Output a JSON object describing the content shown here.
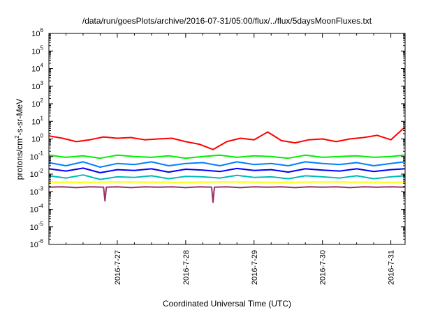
{
  "chart_data": {
    "type": "line",
    "title": "/data/run/goesPlots/archive/2016-07-31/05:00/flux/../flux/5daysMoonFluxes.txt",
    "xlabel": "Coordinated Universal Time (UTC)",
    "ylabel": {
      "base": "protons/cm",
      "sup": "2",
      "rest": "-s-sr-MeV"
    },
    "yscale": "log",
    "ylim": [
      1e-06,
      1000000.0
    ],
    "xlim": [
      "2016-07-26 00:00",
      "2016-07-31 05:00"
    ],
    "x_ticks": [
      "2016-7-27",
      "2016-7-28",
      "2016-7-29",
      "2016-7-30",
      "2016-7-31"
    ],
    "y_ticks": [
      {
        "base": "10",
        "exp": "-6"
      },
      {
        "base": "10",
        "exp": "-5"
      },
      {
        "base": "10",
        "exp": "-4"
      },
      {
        "base": "10",
        "exp": "-3"
      },
      {
        "base": "10",
        "exp": "-2"
      },
      {
        "base": "10",
        "exp": "-1"
      },
      {
        "base": "10",
        "exp": "0"
      },
      {
        "base": "10",
        "exp": "1"
      },
      {
        "base": "10",
        "exp": "2"
      },
      {
        "base": "10",
        "exp": "3"
      },
      {
        "base": "10",
        "exp": "4"
      },
      {
        "base": "10",
        "exp": "5"
      },
      {
        "base": "10",
        "exp": "6"
      }
    ],
    "grid": false,
    "legend": "none",
    "series": [
      {
        "color": "#ff0000",
        "x": [
          0,
          0.2,
          0.4,
          0.6,
          0.8,
          1.0,
          1.2,
          1.4,
          1.6,
          1.8,
          2.0,
          2.2,
          2.4,
          2.6,
          2.8,
          3.0,
          3.2,
          3.4,
          3.6,
          3.8,
          4.0,
          4.2,
          4.4,
          4.6,
          4.8,
          5.0,
          5.2
        ],
        "y": [
          1.5,
          1.1,
          0.7,
          0.9,
          1.3,
          1.1,
          1.2,
          0.9,
          1.0,
          1.1,
          0.7,
          0.5,
          0.25,
          0.7,
          1.1,
          0.9,
          2.5,
          0.8,
          0.6,
          0.9,
          1.0,
          0.7,
          1.0,
          1.2,
          1.6,
          0.9,
          4.5
        ]
      },
      {
        "color": "#00ee00",
        "x": [
          0,
          0.25,
          0.5,
          0.75,
          1.0,
          1.25,
          1.5,
          1.75,
          2.0,
          2.25,
          2.5,
          2.75,
          3.0,
          3.25,
          3.5,
          3.75,
          4.0,
          4.25,
          4.5,
          4.75,
          5.0,
          5.2
        ],
        "y": [
          0.12,
          0.09,
          0.11,
          0.08,
          0.12,
          0.1,
          0.09,
          0.11,
          0.08,
          0.1,
          0.12,
          0.09,
          0.11,
          0.1,
          0.08,
          0.12,
          0.09,
          0.1,
          0.11,
          0.09,
          0.1,
          0.12
        ]
      },
      {
        "color": "#0080ff",
        "x": [
          0,
          0.25,
          0.5,
          0.75,
          1.0,
          1.25,
          1.5,
          1.75,
          2.0,
          2.25,
          2.5,
          2.75,
          3.0,
          3.25,
          3.5,
          3.75,
          4.0,
          4.25,
          4.5,
          4.75,
          5.0,
          5.2
        ],
        "y": [
          0.045,
          0.03,
          0.05,
          0.025,
          0.04,
          0.035,
          0.05,
          0.03,
          0.04,
          0.045,
          0.03,
          0.05,
          0.035,
          0.04,
          0.03,
          0.05,
          0.04,
          0.035,
          0.045,
          0.03,
          0.04,
          0.05
        ]
      },
      {
        "color": "#0000ff",
        "x": [
          0,
          0.25,
          0.5,
          0.75,
          1.0,
          1.25,
          1.5,
          1.75,
          2.0,
          2.25,
          2.5,
          2.75,
          3.0,
          3.25,
          3.5,
          3.75,
          4.0,
          4.25,
          4.5,
          4.75,
          5.0,
          5.2
        ],
        "y": [
          0.02,
          0.015,
          0.022,
          0.012,
          0.018,
          0.016,
          0.02,
          0.013,
          0.019,
          0.017,
          0.014,
          0.021,
          0.016,
          0.018,
          0.013,
          0.02,
          0.017,
          0.015,
          0.02,
          0.014,
          0.018,
          0.02
        ]
      },
      {
        "color": "#00bbbb",
        "x": [
          0,
          0.25,
          0.5,
          0.75,
          1.0,
          1.25,
          1.5,
          1.75,
          2.0,
          2.25,
          2.5,
          2.75,
          3.0,
          3.25,
          3.5,
          3.75,
          4.0,
          4.25,
          4.5,
          4.75,
          5.0,
          5.2
        ],
        "y": [
          0.008,
          0.006,
          0.009,
          0.005,
          0.007,
          0.0065,
          0.008,
          0.0055,
          0.0075,
          0.007,
          0.006,
          0.0085,
          0.0065,
          0.007,
          0.0055,
          0.008,
          0.007,
          0.006,
          0.008,
          0.0055,
          0.007,
          0.008
        ]
      },
      {
        "color": "#ffff00",
        "x": [
          0,
          0.5,
          1.0,
          1.5,
          2.0,
          2.5,
          3.0,
          3.5,
          4.0,
          4.5,
          5.0,
          5.2
        ],
        "y": [
          0.0035,
          0.0034,
          0.0036,
          0.0035,
          0.0034,
          0.0036,
          0.0035,
          0.0034,
          0.0036,
          0.0035,
          0.0034,
          0.0035
        ]
      },
      {
        "color": "#993366",
        "x": [
          0,
          0.2,
          0.4,
          0.6,
          0.8,
          0.82,
          0.84,
          1.0,
          1.2,
          1.4,
          1.6,
          1.8,
          2.0,
          2.2,
          2.38,
          2.4,
          2.42,
          2.6,
          2.8,
          3.0,
          3.2,
          3.4,
          3.6,
          3.8,
          4.0,
          4.2,
          4.4,
          4.6,
          4.8,
          5.0,
          5.2
        ],
        "y": [
          0.0018,
          0.0019,
          0.0017,
          0.0019,
          0.0018,
          0.0003,
          0.0018,
          0.0019,
          0.0017,
          0.0019,
          0.0018,
          0.0019,
          0.0017,
          0.0019,
          0.0018,
          0.00025,
          0.0018,
          0.0019,
          0.0017,
          0.0019,
          0.0018,
          0.0019,
          0.0017,
          0.0019,
          0.0018,
          0.0019,
          0.0017,
          0.0019,
          0.0018,
          0.0019,
          0.0018
        ]
      }
    ]
  }
}
